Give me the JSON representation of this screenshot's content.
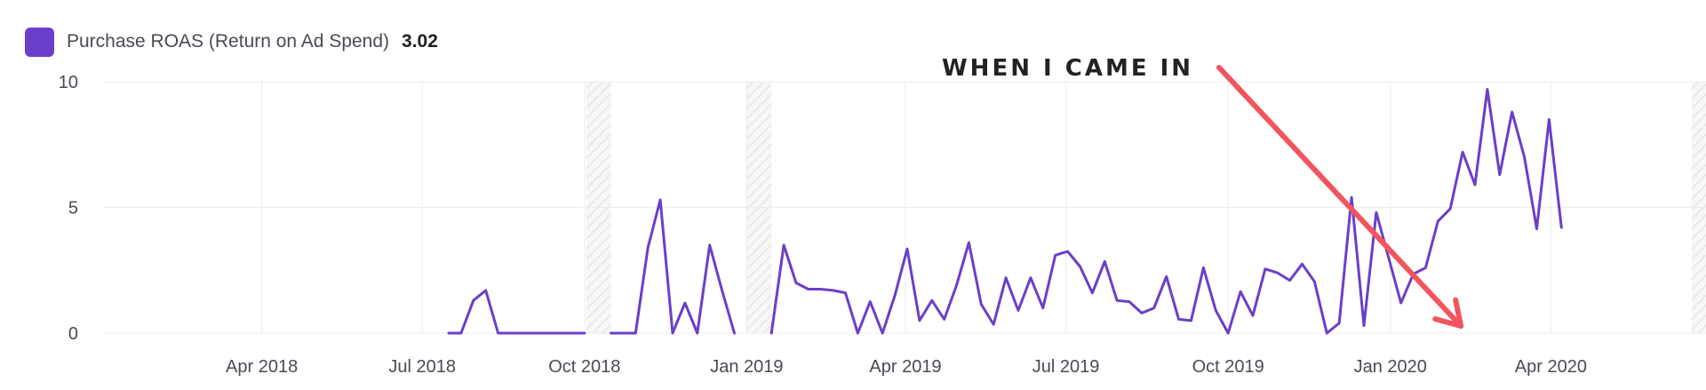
{
  "legend": {
    "label": "Purchase ROAS (Return on Ad Spend)",
    "value": "3.02",
    "swatch_color": "#6a3fc9"
  },
  "annotation": {
    "text": "WHEN I CAME IN",
    "arrow_color": "#f2555d",
    "points_to_date": "2020-02-10",
    "points_to_value": 0
  },
  "chart_data": {
    "type": "line",
    "title": "",
    "xlabel": "",
    "ylabel": "",
    "ylim": [
      0,
      10
    ],
    "xlim": [
      "2018-01-01",
      "2020-06-28"
    ],
    "y_ticks": [
      0,
      5,
      10
    ],
    "y_tick_labels": [
      "0",
      "5",
      "10"
    ],
    "x_ticks": [
      "2018-04-01",
      "2018-07-01",
      "2018-10-01",
      "2019-01-01",
      "2019-04-01",
      "2019-07-01",
      "2019-10-01",
      "2020-01-01",
      "2020-04-01"
    ],
    "x_tick_labels": [
      "Apr 2018",
      "Jul 2018",
      "Oct 2018",
      "Jan 2019",
      "Apr 2019",
      "Jul 2019",
      "Oct 2019",
      "Jan 2020",
      "Apr 2020"
    ],
    "grid": true,
    "line_color": "#6a3fc9",
    "hatched_periods": [
      [
        "2018-10-02",
        "2018-10-16"
      ],
      [
        "2019-01-01",
        "2019-01-15"
      ],
      [
        "2020-06-20",
        "2020-06-28"
      ]
    ],
    "series": [
      {
        "name": "Purchase ROAS (Return on Ad Spend)",
        "segments": [
          [
            [
              "2018-07-16",
              0
            ],
            [
              "2018-07-23",
              0
            ],
            [
              "2018-07-30",
              1.3
            ],
            [
              "2018-08-06",
              1.7
            ],
            [
              "2018-08-13",
              0
            ],
            [
              "2018-08-20",
              0
            ],
            [
              "2018-08-27",
              0
            ],
            [
              "2018-09-03",
              0
            ],
            [
              "2018-09-10",
              0
            ],
            [
              "2018-09-17",
              0
            ],
            [
              "2018-09-24",
              0
            ],
            [
              "2018-10-01",
              0
            ]
          ],
          [
            [
              "2018-10-16",
              0
            ],
            [
              "2018-10-23",
              0
            ],
            [
              "2018-10-30",
              0
            ],
            [
              "2018-11-06",
              3.4
            ],
            [
              "2018-11-13",
              5.3
            ],
            [
              "2018-11-20",
              0
            ],
            [
              "2018-11-27",
              1.2
            ],
            [
              "2018-12-04",
              0
            ],
            [
              "2018-12-11",
              3.5
            ],
            [
              "2018-12-18",
              1.7
            ],
            [
              "2018-12-25",
              0
            ]
          ],
          [
            [
              "2019-01-15",
              0
            ],
            [
              "2019-01-22",
              3.5
            ],
            [
              "2019-01-29",
              2.0
            ],
            [
              "2019-02-05",
              1.75
            ],
            [
              "2019-02-12",
              1.75
            ],
            [
              "2019-02-19",
              1.7
            ],
            [
              "2019-02-26",
              1.6
            ],
            [
              "2019-03-05",
              0
            ],
            [
              "2019-03-12",
              1.25
            ],
            [
              "2019-03-19",
              0
            ],
            [
              "2019-03-26",
              1.5
            ],
            [
              "2019-04-02",
              3.35
            ],
            [
              "2019-04-09",
              0.5
            ],
            [
              "2019-04-16",
              1.3
            ],
            [
              "2019-04-23",
              0.55
            ],
            [
              "2019-04-30",
              1.9
            ],
            [
              "2019-05-07",
              3.6
            ],
            [
              "2019-05-14",
              1.15
            ],
            [
              "2019-05-21",
              0.35
            ],
            [
              "2019-05-28",
              2.2
            ],
            [
              "2019-06-04",
              0.9
            ],
            [
              "2019-06-11",
              2.2
            ],
            [
              "2019-06-18",
              1.0
            ],
            [
              "2019-06-25",
              3.1
            ],
            [
              "2019-07-02",
              3.25
            ],
            [
              "2019-07-09",
              2.65
            ],
            [
              "2019-07-16",
              1.6
            ],
            [
              "2019-07-23",
              2.85
            ],
            [
              "2019-07-30",
              1.3
            ],
            [
              "2019-08-06",
              1.25
            ],
            [
              "2019-08-13",
              0.8
            ],
            [
              "2019-08-20",
              1.0
            ],
            [
              "2019-08-27",
              2.25
            ],
            [
              "2019-09-03",
              0.55
            ],
            [
              "2019-09-10",
              0.5
            ],
            [
              "2019-09-17",
              2.6
            ],
            [
              "2019-09-24",
              0.9
            ],
            [
              "2019-10-01",
              0
            ],
            [
              "2019-10-08",
              1.65
            ],
            [
              "2019-10-15",
              0.7
            ],
            [
              "2019-10-22",
              2.55
            ],
            [
              "2019-10-29",
              2.4
            ],
            [
              "2019-11-05",
              2.1
            ],
            [
              "2019-11-12",
              2.75
            ],
            [
              "2019-11-19",
              2.05
            ],
            [
              "2019-11-26",
              0
            ],
            [
              "2019-12-03",
              0.4
            ],
            [
              "2019-12-10",
              5.4
            ],
            [
              "2019-12-17",
              0.3
            ],
            [
              "2019-12-24",
              4.8
            ],
            [
              "2019-12-31",
              3.0
            ],
            [
              "2020-01-07",
              1.2
            ],
            [
              "2020-01-14",
              2.35
            ],
            [
              "2020-01-21",
              2.6
            ],
            [
              "2020-01-28",
              4.45
            ],
            [
              "2020-02-04",
              4.95
            ],
            [
              "2020-02-11",
              7.2
            ],
            [
              "2020-02-18",
              5.9
            ],
            [
              "2020-02-25",
              9.7
            ],
            [
              "2020-03-03",
              6.3
            ],
            [
              "2020-03-10",
              8.8
            ],
            [
              "2020-03-17",
              7.0
            ],
            [
              "2020-03-24",
              4.15
            ],
            [
              "2020-03-31",
              8.5
            ],
            [
              "2020-04-07",
              4.2
            ]
          ]
        ]
      }
    ]
  }
}
